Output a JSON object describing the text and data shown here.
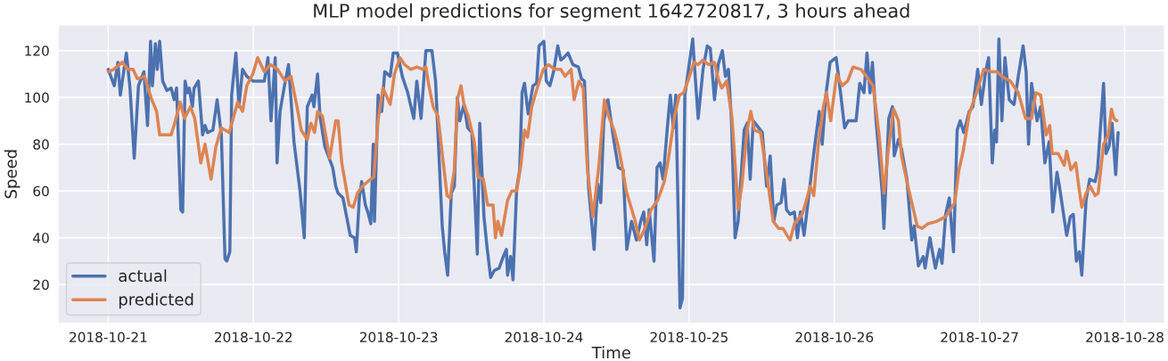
{
  "chart_data": {
    "type": "line",
    "title": "MLP model predictions for segment 1642720817, 3 hours ahead",
    "xlabel": "Time",
    "ylabel": "Speed",
    "xlim": [
      "2018-10-20T15:46",
      "2018-10-28T06:34"
    ],
    "xticks": [
      "2018-10-21",
      "2018-10-22",
      "2018-10-23",
      "2018-10-24",
      "2018-10-25",
      "2018-10-26",
      "2018-10-27",
      "2018-10-28"
    ],
    "ylim": [
      3.5,
      131
    ],
    "yticks": [
      20,
      40,
      60,
      80,
      100,
      120
    ],
    "grid": true,
    "legend": "bottom left",
    "line_style": "solid",
    "series": [
      {
        "name": "actual",
        "color": "#4c72b0",
        "x": [
          "2018-10-21T00:00",
          "2018-10-21T01:00",
          "2018-10-21T01:36",
          "2018-10-21T02:00",
          "2018-10-21T03:00",
          "2018-10-21T03:36",
          "2018-10-21T04:18",
          "2018-10-21T05:00",
          "2018-10-21T05:54",
          "2018-10-21T06:30",
          "2018-10-21T07:00",
          "2018-10-21T07:18",
          "2018-10-21T07:48",
          "2018-10-21T08:06",
          "2018-10-21T08:30",
          "2018-10-21T09:00",
          "2018-10-21T09:42",
          "2018-10-21T10:24",
          "2018-10-21T10:54",
          "2018-10-21T11:18",
          "2018-10-21T12:00",
          "2018-10-21T12:18",
          "2018-10-21T12:42",
          "2018-10-21T13:06",
          "2018-10-21T13:24",
          "2018-10-21T13:54",
          "2018-10-21T14:12",
          "2018-10-21T14:54",
          "2018-10-21T15:36",
          "2018-10-21T16:00",
          "2018-10-21T16:24",
          "2018-10-21T17:18",
          "2018-10-21T18:00",
          "2018-10-21T18:42",
          "2018-10-21T19:18",
          "2018-10-21T19:36",
          "2018-10-21T20:06",
          "2018-10-21T20:24",
          "2018-10-21T21:06",
          "2018-10-21T21:36",
          "2018-10-21T22:12",
          "2018-10-21T22:54",
          "2018-10-21T23:54",
          "2018-10-22T01:48",
          "2018-10-22T02:24",
          "2018-10-22T02:54",
          "2018-10-22T03:36",
          "2018-10-22T03:54",
          "2018-10-22T04:24",
          "2018-10-22T05:12",
          "2018-10-22T05:48",
          "2018-10-22T06:42",
          "2018-10-22T07:42",
          "2018-10-22T08:24",
          "2018-10-22T08:54",
          "2018-10-22T09:42",
          "2018-10-22T10:00",
          "2018-10-22T10:36",
          "2018-10-22T11:00",
          "2018-10-22T11:48",
          "2018-10-22T13:06",
          "2018-10-22T13:36",
          "2018-10-22T14:00",
          "2018-10-22T14:48",
          "2018-10-22T16:00",
          "2018-10-22T16:42",
          "2018-10-22T17:00",
          "2018-10-22T17:30",
          "2018-10-22T17:54",
          "2018-10-22T18:30",
          "2018-10-22T18:54",
          "2018-10-22T19:24",
          "2018-10-22T19:48",
          "2018-10-22T20:00",
          "2018-10-22T20:36",
          "2018-10-22T21:12",
          "2018-10-22T21:42",
          "2018-10-22T22:36",
          "2018-10-22T23:06",
          "2018-10-22T23:48",
          "2018-10-23T00:36",
          "2018-10-23T01:30",
          "2018-10-23T02:30",
          "2018-10-23T03:00",
          "2018-10-23T03:42",
          "2018-10-23T04:30",
          "2018-10-23T05:30",
          "2018-10-23T06:06",
          "2018-10-23T07:12",
          "2018-10-23T07:36",
          "2018-10-23T08:06",
          "2018-10-23T08:42",
          "2018-10-23T09:12",
          "2018-10-23T09:42",
          "2018-10-23T10:06",
          "2018-10-23T10:48",
          "2018-10-23T11:24",
          "2018-10-23T12:06",
          "2018-10-23T13:00",
          "2018-10-23T13:24",
          "2018-10-23T14:06",
          "2018-10-23T14:36",
          "2018-10-23T15:12",
          "2018-10-23T15:48",
          "2018-10-23T16:36",
          "2018-10-23T17:18",
          "2018-10-23T17:48",
          "2018-10-23T18:00",
          "2018-10-23T18:30",
          "2018-10-23T18:54",
          "2018-10-23T19:30",
          "2018-10-23T20:00",
          "2018-10-23T20:24",
          "2018-10-23T20:48",
          "2018-10-23T21:24",
          "2018-10-23T22:12",
          "2018-10-23T22:48",
          "2018-10-23T23:12",
          "2018-10-24T00:00",
          "2018-10-24T00:24",
          "2018-10-24T01:00",
          "2018-10-24T01:36",
          "2018-10-24T02:18",
          "2018-10-24T02:48",
          "2018-10-24T03:18",
          "2018-10-24T04:00",
          "2018-10-24T04:48",
          "2018-10-24T05:42",
          "2018-10-24T06:12",
          "2018-10-24T06:42",
          "2018-10-24T07:24",
          "2018-10-24T08:18",
          "2018-10-24T08:54",
          "2018-10-24T09:24",
          "2018-10-24T09:54",
          "2018-10-24T10:36",
          "2018-10-24T11:36",
          "2018-10-24T12:18",
          "2018-10-24T13:06",
          "2018-10-24T13:42",
          "2018-10-24T14:30",
          "2018-10-24T15:18",
          "2018-10-24T16:00",
          "2018-10-24T16:30",
          "2018-10-24T17:00",
          "2018-10-24T17:24",
          "2018-10-24T18:12",
          "2018-10-24T18:42",
          "2018-10-24T19:12",
          "2018-10-24T19:42",
          "2018-10-24T20:24",
          "2018-10-24T20:54",
          "2018-10-24T21:24",
          "2018-10-24T21:48",
          "2018-10-24T22:30",
          "2018-10-24T22:54",
          "2018-10-24T23:18",
          "2018-10-24T23:54",
          "2018-10-25T00:36",
          "2018-10-25T00:54",
          "2018-10-25T01:30",
          "2018-10-25T02:18",
          "2018-10-25T03:00",
          "2018-10-25T03:30",
          "2018-10-25T04:12",
          "2018-10-25T04:48",
          "2018-10-25T05:30",
          "2018-10-25T06:00",
          "2018-10-25T06:30",
          "2018-10-25T07:00",
          "2018-10-25T07:36",
          "2018-10-25T08:06",
          "2018-10-25T09:06",
          "2018-10-25T09:36",
          "2018-10-25T10:06",
          "2018-10-25T10:36",
          "2018-10-25T12:06",
          "2018-10-25T12:48",
          "2018-10-25T13:24",
          "2018-10-25T14:00",
          "2018-10-25T14:30",
          "2018-10-25T15:12",
          "2018-10-25T15:42",
          "2018-10-25T16:06",
          "2018-10-25T16:42",
          "2018-10-25T17:24",
          "2018-10-25T17:54",
          "2018-10-25T18:24",
          "2018-10-25T19:00",
          "2018-10-25T19:36",
          "2018-10-25T20:36",
          "2018-10-25T21:30",
          "2018-10-25T22:00",
          "2018-10-25T22:36",
          "2018-10-25T23:18",
          "2018-10-26T00:18",
          "2018-10-26T00:48",
          "2018-10-26T01:42",
          "2018-10-26T02:18",
          "2018-10-26T03:36",
          "2018-10-26T04:12",
          "2018-10-26T04:54",
          "2018-10-26T05:24",
          "2018-10-26T05:54",
          "2018-10-26T06:18",
          "2018-10-26T06:54",
          "2018-10-26T07:54",
          "2018-10-26T08:12",
          "2018-10-26T09:00",
          "2018-10-26T09:36",
          "2018-10-26T09:54",
          "2018-10-26T10:36",
          "2018-10-26T11:06",
          "2018-10-26T12:00",
          "2018-10-26T12:48",
          "2018-10-26T13:12",
          "2018-10-26T13:54",
          "2018-10-26T14:42",
          "2018-10-26T15:00",
          "2018-10-26T15:48",
          "2018-10-26T16:42",
          "2018-10-26T17:24",
          "2018-10-26T17:48",
          "2018-10-26T18:24",
          "2018-10-26T19:00",
          "2018-10-26T19:42",
          "2018-10-26T20:18",
          "2018-10-26T20:48",
          "2018-10-26T21:24",
          "2018-10-26T22:18",
          "2018-10-26T22:54",
          "2018-10-26T23:42",
          "2018-10-27T00:18",
          "2018-10-27T01:00",
          "2018-10-27T01:30",
          "2018-10-27T02:06",
          "2018-10-27T02:30",
          "2018-10-27T02:48",
          "2018-10-27T03:12",
          "2018-10-27T03:42",
          "2018-10-27T04:12",
          "2018-10-27T04:54",
          "2018-10-27T05:42",
          "2018-10-27T06:24",
          "2018-10-27T07:12",
          "2018-10-27T07:42",
          "2018-10-27T08:06",
          "2018-10-27T08:36",
          "2018-10-27T09:30",
          "2018-10-27T10:06",
          "2018-10-27T10:48",
          "2018-10-27T11:30",
          "2018-10-27T12:06",
          "2018-10-27T12:48",
          "2018-10-27T13:12",
          "2018-10-27T14:24",
          "2018-10-27T15:00",
          "2018-10-27T15:30",
          "2018-10-27T16:00",
          "2018-10-27T16:30",
          "2018-10-27T16:54",
          "2018-10-27T17:36",
          "2018-10-27T18:12",
          "2018-10-27T19:06",
          "2018-10-27T19:30",
          "2018-10-27T20:30",
          "2018-10-27T20:54",
          "2018-10-27T21:24",
          "2018-10-27T21:54",
          "2018-10-27T22:30",
          "2018-10-27T22:54"
        ],
        "values": [
          112,
          105,
          115,
          101,
          119,
          104,
          74,
          105,
          111,
          88,
          124,
          105,
          123,
          112,
          124,
          107,
          103,
          104,
          99,
          104,
          52,
          51,
          107,
          102,
          104,
          96,
          104,
          107,
          84,
          88,
          85,
          86,
          99,
          84,
          31,
          30,
          34,
          101,
          119,
          96,
          112,
          109,
          107,
          107,
          117,
          90,
          117,
          72,
          94,
          106,
          114,
          81,
          60,
          40,
          96,
          101,
          96,
          110,
          92,
          79,
          70,
          62,
          59,
          57,
          41,
          40,
          34,
          57,
          64,
          54,
          51,
          46,
          80,
          47,
          101,
          94,
          111,
          109,
          119,
          119,
          109,
          102,
          91,
          107,
          91,
          120,
          120,
          107,
          45,
          34,
          24,
          59,
          62,
          100,
          90,
          97,
          87,
          85,
          33,
          89,
          49,
          36,
          23,
          26,
          27,
          32,
          35,
          24,
          32,
          22,
          61,
          69,
          102,
          106,
          93,
          105,
          106,
          122,
          124,
          107,
          105,
          111,
          122,
          116,
          117,
          119,
          114,
          113,
          108,
          107,
          61,
          35,
          63,
          55,
          90,
          99,
          81,
          70,
          69,
          35,
          47,
          39,
          47,
          51,
          37,
          52,
          30,
          70,
          72,
          65,
          87,
          101,
          87,
          101,
          10,
          14,
          101,
          112,
          125,
          113,
          91,
          112,
          122,
          121,
          99,
          114,
          120,
          109,
          112,
          90,
          40,
          47,
          86,
          89,
          65,
          90,
          85,
          62,
          75,
          47,
          54,
          55,
          65,
          52,
          50,
          51,
          40,
          51,
          41,
          54,
          76,
          94,
          80,
          101,
          115,
          117,
          107,
          87,
          90,
          90,
          106,
          102,
          119,
          102,
          115,
          90,
          60,
          44,
          91,
          96,
          75,
          82,
          78,
          65,
          39,
          45,
          28,
          32,
          27,
          40,
          27,
          35,
          29,
          50,
          57,
          34,
          86,
          90,
          85,
          94,
          96,
          112,
          97,
          111,
          117,
          72,
          86,
          81,
          125,
          90,
          117,
          99,
          97,
          109,
          122,
          111,
          80,
          106,
          90,
          96,
          72,
          81,
          51,
          68,
          62,
          41,
          49,
          50,
          30,
          34,
          24,
          56,
          65,
          64,
          69,
          106,
          76,
          79,
          89,
          67,
          85
        ]
      },
      {
        "name": "predicted",
        "color": "#dd8452",
        "x": [
          "2018-10-21T00:00",
          "2018-10-21T00:54",
          "2018-10-21T02:18",
          "2018-10-21T03:18",
          "2018-10-21T04:06",
          "2018-10-21T04:48",
          "2018-10-21T06:00",
          "2018-10-21T07:12",
          "2018-10-21T08:00",
          "2018-10-21T08:30",
          "2018-10-21T09:24",
          "2018-10-21T10:24",
          "2018-10-21T11:06",
          "2018-10-21T11:54",
          "2018-10-21T12:36",
          "2018-10-21T13:36",
          "2018-10-21T14:18",
          "2018-10-21T15:18",
          "2018-10-21T16:00",
          "2018-10-21T17:00",
          "2018-10-21T17:48",
          "2018-10-21T18:42",
          "2018-10-21T20:00",
          "2018-10-21T21:24",
          "2018-10-21T22:12",
          "2018-10-21T22:54",
          "2018-10-21T23:54",
          "2018-10-22T00:42",
          "2018-10-22T01:48",
          "2018-10-22T02:48",
          "2018-10-22T04:00",
          "2018-10-22T05:12",
          "2018-10-22T06:12",
          "2018-10-22T07:12",
          "2018-10-22T07:54",
          "2018-10-22T08:54",
          "2018-10-22T09:30",
          "2018-10-22T10:06",
          "2018-10-22T10:36",
          "2018-10-22T11:24",
          "2018-10-22T12:36",
          "2018-10-22T13:36",
          "2018-10-22T14:00",
          "2018-10-22T14:36",
          "2018-10-22T15:48",
          "2018-10-22T16:30",
          "2018-10-22T17:12",
          "2018-10-22T18:00",
          "2018-10-22T18:54",
          "2018-10-22T19:54",
          "2018-10-22T20:36",
          "2018-10-22T21:24",
          "2018-10-22T22:36",
          "2018-10-22T23:18",
          "2018-10-23T00:12",
          "2018-10-23T01:00",
          "2018-10-23T02:00",
          "2018-10-23T03:00",
          "2018-10-23T04:00",
          "2018-10-23T04:30",
          "2018-10-23T05:00",
          "2018-10-23T05:42",
          "2018-10-23T06:30",
          "2018-10-23T07:12",
          "2018-10-23T08:00",
          "2018-10-23T08:30",
          "2018-10-23T09:12",
          "2018-10-23T09:42",
          "2018-10-23T10:18",
          "2018-10-23T10:48",
          "2018-10-23T11:30",
          "2018-10-23T12:30",
          "2018-10-23T13:06",
          "2018-10-23T14:00",
          "2018-10-23T14:42",
          "2018-10-23T15:36",
          "2018-10-23T16:00",
          "2018-10-23T16:24",
          "2018-10-23T17:00",
          "2018-10-23T18:00",
          "2018-10-23T18:42",
          "2018-10-23T19:30",
          "2018-10-23T20:12",
          "2018-10-23T20:48",
          "2018-10-23T21:18",
          "2018-10-23T22:00",
          "2018-10-23T22:54",
          "2018-10-23T23:54",
          "2018-10-24T00:48",
          "2018-10-24T01:48",
          "2018-10-24T02:48",
          "2018-10-24T03:30",
          "2018-10-24T04:30",
          "2018-10-24T05:00",
          "2018-10-24T05:48",
          "2018-10-24T06:30",
          "2018-10-24T07:12",
          "2018-10-24T08:06",
          "2018-10-24T09:06",
          "2018-10-24T10:00",
          "2018-10-24T10:42",
          "2018-10-24T11:36",
          "2018-10-24T12:18",
          "2018-10-24T12:54",
          "2018-10-24T13:36",
          "2018-10-24T14:18",
          "2018-10-24T15:06",
          "2018-10-24T15:48",
          "2018-10-24T16:42",
          "2018-10-24T17:42",
          "2018-10-24T18:48",
          "2018-10-24T19:54",
          "2018-10-24T20:36",
          "2018-10-24T21:36",
          "2018-10-24T22:24",
          "2018-10-24T23:06",
          "2018-10-24T23:48",
          "2018-10-25T00:48",
          "2018-10-25T01:30",
          "2018-10-25T02:18",
          "2018-10-25T03:12",
          "2018-10-25T04:12",
          "2018-10-25T04:48",
          "2018-10-25T05:24",
          "2018-10-25T06:12",
          "2018-10-25T07:06",
          "2018-10-25T08:06",
          "2018-10-25T08:42",
          "2018-10-25T09:36",
          "2018-10-25T10:12",
          "2018-10-25T10:48",
          "2018-10-25T11:48",
          "2018-10-25T12:06",
          "2018-10-25T13:00",
          "2018-10-25T13:54",
          "2018-10-25T14:48",
          "2018-10-25T15:30",
          "2018-10-25T16:12",
          "2018-10-25T16:42",
          "2018-10-25T17:24",
          "2018-10-25T18:42",
          "2018-10-25T19:30",
          "2018-10-25T20:00",
          "2018-10-25T20:36",
          "2018-10-25T21:24",
          "2018-10-25T22:12",
          "2018-10-25T22:42",
          "2018-10-25T23:24",
          "2018-10-26T00:24",
          "2018-10-26T01:18",
          "2018-10-26T02:12",
          "2018-10-26T03:06",
          "2018-10-26T04:24",
          "2018-10-26T05:18",
          "2018-10-26T06:24",
          "2018-10-26T07:24",
          "2018-10-26T08:12",
          "2018-10-26T08:54",
          "2018-10-26T09:48",
          "2018-10-26T10:36",
          "2018-10-26T11:06",
          "2018-10-26T12:00",
          "2018-10-26T13:42",
          "2018-10-26T14:30",
          "2018-10-26T15:30",
          "2018-10-26T16:54",
          "2018-10-26T18:24",
          "2018-10-26T19:54",
          "2018-10-26T20:36",
          "2018-10-26T21:18",
          "2018-10-26T22:18",
          "2018-10-26T23:30",
          "2018-10-27T00:42",
          "2018-10-27T01:54",
          "2018-10-27T02:54",
          "2018-10-27T03:42",
          "2018-10-27T05:06",
          "2018-10-27T06:24",
          "2018-10-27T07:36",
          "2018-10-27T08:36",
          "2018-10-27T09:18",
          "2018-10-27T10:06",
          "2018-10-27T11:00",
          "2018-10-27T11:36",
          "2018-10-27T12:00",
          "2018-10-27T13:00",
          "2018-10-27T14:00",
          "2018-10-27T14:24",
          "2018-10-27T15:06",
          "2018-10-27T15:54",
          "2018-10-27T16:24",
          "2018-10-27T16:54",
          "2018-10-27T17:36",
          "2018-10-27T18:18",
          "2018-10-27T19:06",
          "2018-10-27T19:36",
          "2018-10-27T20:30",
          "2018-10-27T21:18",
          "2018-10-27T21:48",
          "2018-10-27T22:12",
          "2018-10-27T22:42"
        ],
        "values": [
          111,
          112,
          115,
          112,
          112,
          108,
          109,
          99,
          94,
          84,
          84,
          84,
          90,
          98,
          91,
          96,
          91,
          72,
          80,
          65,
          79,
          87,
          85,
          98,
          94,
          105,
          110,
          117,
          111,
          114,
          112,
          107,
          109,
          96,
          86,
          82,
          89,
          85,
          94,
          92,
          74,
          90,
          90,
          72,
          54,
          53,
          59,
          62,
          64,
          66,
          90,
          104,
          97,
          110,
          117,
          114,
          112,
          113,
          112,
          113,
          105,
          96,
          92,
          76,
          58,
          57,
          69,
          99,
          105,
          97,
          92,
          81,
          66,
          65,
          54,
          54,
          40,
          47,
          41,
          56,
          60,
          60,
          71,
          86,
          83,
          96,
          104,
          112,
          114,
          112,
          112,
          109,
          112,
          99,
          107,
          104,
          69,
          49,
          71,
          99,
          92,
          86,
          79,
          71,
          60,
          54,
          47,
          39,
          44,
          52,
          56,
          64,
          74,
          92,
          101,
          102,
          107,
          115,
          114,
          116,
          114,
          115,
          108,
          104,
          107,
          91,
          52,
          62,
          86,
          94,
          86,
          85,
          80,
          64,
          47,
          44,
          44,
          41,
          39,
          46,
          50,
          57,
          62,
          58,
          81,
          96,
          102,
          90,
          110,
          105,
          107,
          113,
          112,
          109,
          105,
          84,
          59,
          77,
          95,
          90,
          75,
          64,
          45,
          44,
          46,
          47,
          49,
          55,
          69,
          77,
          93,
          102,
          112,
          111,
          111,
          109,
          107,
          102,
          91,
          91,
          102,
          101,
          84,
          88,
          76,
          76,
          71,
          77,
          69,
          72,
          62,
          53,
          59,
          62,
          58,
          59,
          80,
          84,
          95,
          91,
          90
        ]
      }
    ]
  }
}
